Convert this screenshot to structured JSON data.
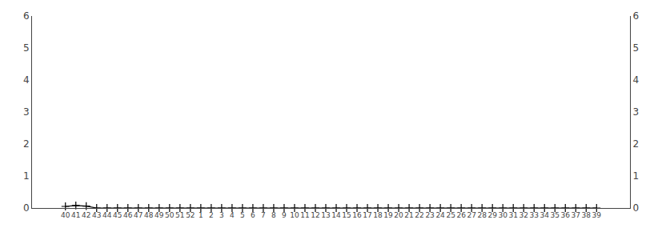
{
  "chart_data": {
    "type": "line",
    "categories": [
      "40",
      "41",
      "42",
      "43",
      "44",
      "45",
      "46",
      "47",
      "48",
      "49",
      "50",
      "51",
      "52",
      "1",
      "2",
      "3",
      "4",
      "5",
      "6",
      "7",
      "8",
      "9",
      "10",
      "11",
      "12",
      "13",
      "14",
      "15",
      "16",
      "17",
      "18",
      "19",
      "20",
      "21",
      "22",
      "23",
      "24",
      "25",
      "26",
      "27",
      "28",
      "29",
      "30",
      "31",
      "32",
      "33",
      "34",
      "35",
      "36",
      "37",
      "38",
      "39"
    ],
    "values": [
      0.05,
      0.08,
      0.06,
      0,
      0,
      0,
      0,
      0,
      0,
      0,
      0,
      0,
      0,
      0,
      0,
      0,
      0,
      0,
      0,
      0,
      0,
      0,
      0,
      0,
      0,
      0,
      0,
      0,
      0,
      0,
      0,
      0,
      0,
      0,
      0,
      0,
      0,
      0,
      0,
      0,
      0,
      0,
      0,
      0,
      0,
      0,
      0,
      0,
      0,
      0,
      0,
      0
    ],
    "color": "#000000",
    "marker": "plus",
    "line_style": "solid",
    "ylim": [
      0,
      6
    ],
    "yticks": [
      0,
      1,
      2,
      3,
      4,
      5,
      6
    ],
    "y2lim": [
      0,
      6
    ],
    "y2ticks": [
      0,
      1,
      2,
      3,
      4,
      5,
      6
    ],
    "grid": false
  }
}
